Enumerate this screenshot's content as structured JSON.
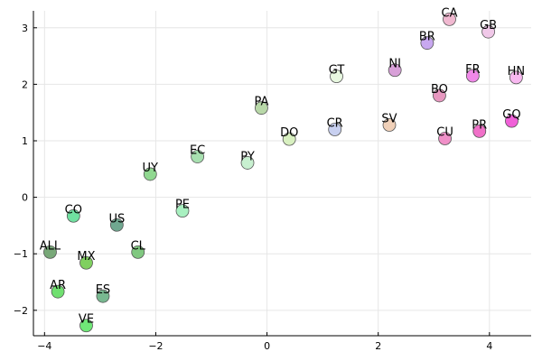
{
  "chart_data": {
    "type": "scatter",
    "title": "",
    "xlabel": "",
    "ylabel": "",
    "xlim": [
      -4.2,
      4.75
    ],
    "ylim": [
      -2.45,
      3.3
    ],
    "x_ticks": [
      -4,
      -2,
      0,
      2,
      4
    ],
    "x_tick_labels": [
      "−4",
      "−2",
      "0",
      "2",
      "4"
    ],
    "y_ticks": [
      -2,
      -1,
      0,
      1,
      2,
      3
    ],
    "y_tick_labels": [
      "−2",
      "−1",
      "0",
      "1",
      "2",
      "3"
    ],
    "grid": true,
    "legend": "none",
    "points": [
      {
        "label": "CA",
        "x": 3.28,
        "y": 3.15,
        "color": "#f0b8d0"
      },
      {
        "label": "GB",
        "x": 3.98,
        "y": 2.93,
        "color": "#f0c8e8"
      },
      {
        "label": "BR",
        "x": 2.88,
        "y": 2.73,
        "color": "#c8a8f0"
      },
      {
        "label": "GT",
        "x": 1.25,
        "y": 2.14,
        "color": "#e8f8e0"
      },
      {
        "label": "NI",
        "x": 2.3,
        "y": 2.25,
        "color": "#d8a0d8"
      },
      {
        "label": "FR",
        "x": 3.7,
        "y": 2.15,
        "color": "#f088e8"
      },
      {
        "label": "HN",
        "x": 4.48,
        "y": 2.12,
        "color": "#f8b8f0"
      },
      {
        "label": "BO",
        "x": 3.1,
        "y": 1.8,
        "color": "#e898c0"
      },
      {
        "label": "PA",
        "x": -0.1,
        "y": 1.58,
        "color": "#b8d8a8"
      },
      {
        "label": "SV",
        "x": 2.2,
        "y": 1.28,
        "color": "#f0d0b8"
      },
      {
        "label": "CR",
        "x": 1.22,
        "y": 1.2,
        "color": "#c8d0f0"
      },
      {
        "label": "CU",
        "x": 3.2,
        "y": 1.04,
        "color": "#f090c8"
      },
      {
        "label": "PR",
        "x": 3.82,
        "y": 1.17,
        "color": "#f070c8"
      },
      {
        "label": "GQ",
        "x": 4.4,
        "y": 1.35,
        "color": "#f060d8"
      },
      {
        "label": "DO",
        "x": 0.4,
        "y": 1.03,
        "color": "#d8f0c0"
      },
      {
        "label": "EC",
        "x": -1.25,
        "y": 0.72,
        "color": "#a8e0b0"
      },
      {
        "label": "PY",
        "x": -0.35,
        "y": 0.61,
        "color": "#c8f0d0"
      },
      {
        "label": "UY",
        "x": -2.1,
        "y": 0.41,
        "color": "#90d890"
      },
      {
        "label": "PE",
        "x": -1.52,
        "y": -0.24,
        "color": "#a8f0c0"
      },
      {
        "label": "CO",
        "x": -3.48,
        "y": -0.33,
        "color": "#70e0a0"
      },
      {
        "label": "US",
        "x": -2.7,
        "y": -0.49,
        "color": "#70a890"
      },
      {
        "label": "ALL",
        "x": -3.9,
        "y": -0.97,
        "color": "#78a878"
      },
      {
        "label": "CL",
        "x": -2.32,
        "y": -0.97,
        "color": "#80c880"
      },
      {
        "label": "MX",
        "x": -3.25,
        "y": -1.16,
        "color": "#80d060"
      },
      {
        "label": "AR",
        "x": -3.76,
        "y": -1.67,
        "color": "#70e070"
      },
      {
        "label": "ES",
        "x": -2.95,
        "y": -1.75,
        "color": "#78b890"
      },
      {
        "label": "VE",
        "x": -3.25,
        "y": -2.27,
        "color": "#70e878"
      }
    ]
  }
}
